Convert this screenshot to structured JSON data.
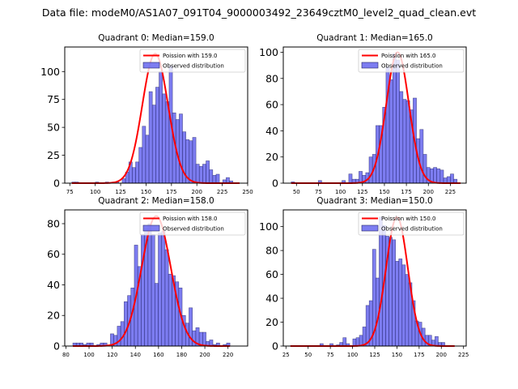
{
  "suptitle": "Data file: modeM0/AS1A07_091T04_9000003492_23649cztM0_level2_quad_clean.evt",
  "colors": {
    "poisson": "#ff0000",
    "hist_fill": "#6666ee",
    "hist_edge": "#222266"
  },
  "chart_data": [
    {
      "type": "bar",
      "title": "Quadrant 0: Median=159.0",
      "xlim": [
        70,
        250
      ],
      "ylim": [
        0,
        122
      ],
      "xticks": [
        75,
        100,
        125,
        150,
        175,
        200,
        225,
        250
      ],
      "yticks": [
        0,
        25,
        50,
        75,
        100
      ],
      "legend": [
        "Poission with 159.0",
        "Observed distribution"
      ],
      "legend_position": "upper-right",
      "poisson_mean": 159.0,
      "poisson_peak": 116,
      "bin_start": 77,
      "bin_width": 3.3,
      "counts": [
        1,
        1,
        0,
        0,
        0,
        0,
        0,
        1,
        0,
        0,
        1,
        0,
        1,
        1,
        0,
        4,
        10,
        19,
        14,
        19,
        32,
        51,
        43,
        82,
        70,
        86,
        100,
        80,
        73,
        105,
        63,
        57,
        62,
        46,
        39,
        38,
        41,
        17,
        15,
        17,
        20,
        12,
        7,
        8,
        0,
        3,
        5,
        2,
        0,
        0
      ]
    },
    {
      "type": "bar",
      "title": "Quadrant 1: Median=165.0",
      "xlim": [
        35,
        243
      ],
      "ylim": [
        0,
        104
      ],
      "xticks": [
        50,
        75,
        100,
        125,
        150,
        175,
        200,
        225
      ],
      "yticks": [
        0,
        20,
        40,
        60,
        80,
        100
      ],
      "legend": [
        "Poission with 165.0",
        "Observed distribution"
      ],
      "legend_position": "upper-right",
      "poisson_mean": 165.0,
      "poisson_peak": 100,
      "bin_start": 44,
      "bin_width": 3.85,
      "counts": [
        1,
        0,
        0,
        0,
        0,
        0,
        0,
        0,
        2,
        0,
        0,
        0,
        0,
        0,
        0,
        2,
        0,
        7,
        3,
        3,
        9,
        6,
        8,
        20,
        22,
        44,
        44,
        58,
        89,
        79,
        99,
        94,
        70,
        64,
        63,
        56,
        65,
        34,
        41,
        22,
        12,
        11,
        12,
        11,
        10,
        4,
        5,
        7,
        3,
        0
      ]
    },
    {
      "type": "bar",
      "title": "Quadrant 2: Median=158.0",
      "xlim": [
        79,
        237
      ],
      "ylim": [
        0,
        89
      ],
      "xticks": [
        80,
        100,
        120,
        140,
        160,
        180,
        200,
        220
      ],
      "yticks": [
        0,
        20,
        40,
        60,
        80
      ],
      "legend": [
        "Poission with 158.0",
        "Observed distribution"
      ],
      "legend_position": "upper-right",
      "poisson_mean": 158.0,
      "poisson_peak": 85,
      "bin_start": 86,
      "bin_width": 2.95,
      "counts": [
        2,
        2,
        2,
        1,
        2,
        2,
        0,
        1,
        2,
        2,
        0,
        8,
        7,
        13,
        16,
        29,
        33,
        38,
        66,
        52,
        73,
        77,
        80,
        73,
        41,
        74,
        75,
        63,
        47,
        46,
        42,
        38,
        20,
        15,
        25,
        10,
        12,
        9,
        9,
        3,
        4,
        1,
        2,
        0,
        1,
        2
      ],
      "counts_peak_note": ""
    },
    {
      "type": "bar",
      "title": "Quadrant 3: Median=150.0",
      "xlim": [
        22,
        228
      ],
      "ylim": [
        0,
        114
      ],
      "xticks": [
        25,
        50,
        75,
        100,
        125,
        150,
        175,
        200,
        225
      ],
      "yticks": [
        0,
        20,
        40,
        60,
        80,
        100
      ],
      "legend": [
        "Poission with 150.0",
        "Observed distribution"
      ],
      "legend_position": "upper-right",
      "poisson_mean": 150.0,
      "poisson_peak": 108,
      "bin_start": 30,
      "bin_width": 3.7,
      "counts": [
        0,
        0,
        0,
        0,
        0,
        0,
        0,
        0,
        0,
        2,
        0,
        0,
        2,
        0,
        1,
        3,
        7,
        2,
        0,
        6,
        7,
        9,
        16,
        34,
        38,
        81,
        57,
        108,
        101,
        92,
        91,
        89,
        71,
        73,
        68,
        60,
        53,
        38,
        21,
        20,
        15,
        9,
        9,
        5,
        8,
        3,
        3,
        0,
        0,
        0
      ]
    }
  ]
}
